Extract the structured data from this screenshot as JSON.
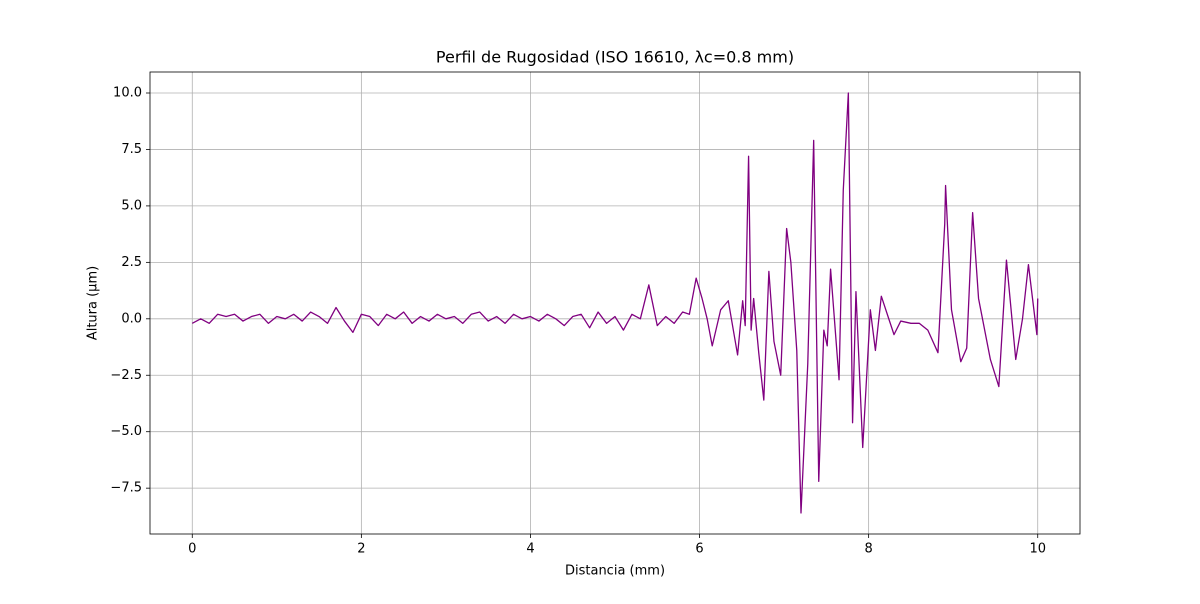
{
  "chart_data": {
    "type": "line",
    "title": "Perfil de Rugosidad (ISO 16610, λc=0.8 mm)",
    "x_label": "Distancia (mm)",
    "y_label": "Altura (µm)",
    "color": "#800080",
    "grid": true,
    "xlim": [
      -0.5,
      10.5
    ],
    "xticks": [
      0,
      2,
      4,
      6,
      8,
      10
    ],
    "ylim": [
      -9.53,
      10.93
    ],
    "yticks": [
      {
        "value": -7.5,
        "label": "−7.5"
      },
      {
        "value": -5,
        "label": "−5.0"
      },
      {
        "value": -2.5,
        "label": "−2.5"
      },
      {
        "value": 0,
        "label": "0.0"
      },
      {
        "value": 2.5,
        "label": "2.5"
      },
      {
        "value": 5,
        "label": "5.0"
      },
      {
        "value": 7.5,
        "label": "7.5"
      },
      {
        "value": 10,
        "label": "10.0"
      }
    ],
    "x": [
      0,
      0.1,
      0.2,
      0.3,
      0.4,
      0.5,
      0.6,
      0.7,
      0.8,
      0.9,
      1.0,
      1.1,
      1.2,
      1.3,
      1.4,
      1.5,
      1.6,
      1.7,
      1.8,
      1.9,
      2.0,
      2.1,
      2.2,
      2.3,
      2.4,
      2.5,
      2.6,
      2.7,
      2.8,
      2.9,
      3.0,
      3.1,
      3.2,
      3.3,
      3.4,
      3.5,
      3.6,
      3.7,
      3.8,
      3.9,
      4.0,
      4.1,
      4.2,
      4.3,
      4.4,
      4.5,
      4.6,
      4.7,
      4.8,
      4.9,
      5.0,
      5.1,
      5.2,
      5.3,
      5.4,
      5.5,
      5.6,
      5.7,
      5.8,
      5.88,
      5.96,
      6.03,
      6.09,
      6.15,
      6.25,
      6.34,
      6.45,
      6.51,
      6.54,
      6.58,
      6.61,
      6.64,
      6.7,
      6.76,
      6.82,
      6.88,
      6.96,
      7.03,
      7.08,
      7.15,
      7.2,
      7.28,
      7.35,
      7.41,
      7.47,
      7.51,
      7.55,
      7.65,
      7.7,
      7.76,
      7.81,
      7.85,
      7.93,
      8.02,
      8.08,
      8.15,
      8.3,
      8.38,
      8.5,
      8.6,
      8.7,
      8.82,
      8.9,
      8.91,
      8.98,
      9.09,
      9.16,
      9.23,
      9.3,
      9.44,
      9.54,
      9.63,
      9.74,
      9.82,
      9.89,
      9.99,
      10.0
    ],
    "values": [
      -0.2,
      0.0,
      -0.2,
      0.2,
      0.1,
      0.2,
      -0.1,
      0.1,
      0.2,
      -0.2,
      0.1,
      0.0,
      0.2,
      -0.1,
      0.3,
      0.1,
      -0.2,
      0.5,
      -0.1,
      -0.6,
      0.2,
      0.1,
      -0.3,
      0.2,
      0.0,
      0.3,
      -0.2,
      0.1,
      -0.1,
      0.2,
      0.0,
      0.1,
      -0.2,
      0.2,
      0.3,
      -0.1,
      0.1,
      -0.2,
      0.2,
      0.0,
      0.1,
      -0.1,
      0.2,
      0.0,
      -0.3,
      0.1,
      0.2,
      -0.4,
      0.3,
      -0.2,
      0.1,
      -0.5,
      0.2,
      0.0,
      1.5,
      -0.3,
      0.1,
      -0.2,
      0.3,
      0.2,
      1.8,
      0.9,
      0.0,
      -1.2,
      0.4,
      0.8,
      -1.6,
      0.8,
      -0.3,
      7.2,
      -0.5,
      0.9,
      -1.5,
      -3.6,
      2.1,
      -1.0,
      -2.5,
      4.0,
      2.5,
      -1.4,
      -8.6,
      -2.0,
      7.9,
      -7.2,
      -0.5,
      -1.2,
      2.2,
      -2.7,
      5.7,
      10.0,
      -4.6,
      1.2,
      -5.7,
      0.4,
      -1.4,
      1.0,
      -0.7,
      -0.1,
      -0.2,
      -0.2,
      -0.5,
      -1.5,
      4.2,
      5.9,
      0.4,
      -1.9,
      -1.3,
      4.7,
      0.9,
      -1.8,
      -3.0,
      2.6,
      -1.8,
      0.0,
      2.4,
      -0.7,
      0.9
    ]
  }
}
